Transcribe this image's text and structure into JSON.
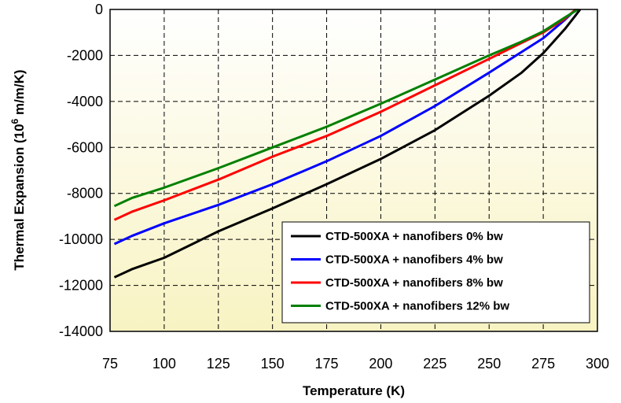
{
  "chart_data": {
    "type": "line",
    "title": "",
    "xlabel": "Temperature (K)",
    "ylabel_parts": [
      "Thermal Expansion (10",
      "6",
      " m/m/K)"
    ],
    "xlim": [
      75,
      300
    ],
    "ylim": [
      -14000,
      0
    ],
    "x_ticks": [
      "75",
      "100",
      "125",
      "150",
      "175",
      "200",
      "225",
      "250",
      "275",
      "300"
    ],
    "y_ticks": [
      "0",
      "-2000",
      "-4000",
      "-6000",
      "-8000",
      "-10000",
      "-12000",
      "-14000"
    ],
    "grid": true,
    "legend_position": "bottom-right",
    "series": [
      {
        "name": "CTD-500XA + nanofibers 0% bw",
        "color": "#000000",
        "x": [
          77,
          85,
          100,
          125,
          150,
          175,
          200,
          225,
          250,
          265,
          275,
          285,
          290,
          292
        ],
        "y": [
          -11650,
          -11300,
          -10800,
          -9650,
          -8650,
          -7600,
          -6500,
          -5250,
          -3750,
          -2750,
          -1900,
          -850,
          -250,
          0
        ]
      },
      {
        "name": "CTD-500XA + nanofibers 4% bw",
        "color": "#0000ff",
        "x": [
          77,
          85,
          100,
          125,
          150,
          175,
          200,
          225,
          250,
          265,
          275,
          285,
          290
        ],
        "y": [
          -10200,
          -9850,
          -9300,
          -8500,
          -7600,
          -6600,
          -5500,
          -4200,
          -2750,
          -1850,
          -1250,
          -450,
          0
        ]
      },
      {
        "name": "CTD-500XA + nanofibers 8% bw",
        "color": "#ff0000",
        "x": [
          77,
          85,
          100,
          125,
          150,
          175,
          200,
          225,
          250,
          265,
          275,
          285,
          290
        ],
        "y": [
          -9150,
          -8800,
          -8300,
          -7400,
          -6400,
          -5500,
          -4450,
          -3300,
          -2150,
          -1450,
          -1000,
          -400,
          0
        ]
      },
      {
        "name": "CTD-500XA + nanofibers 12% bw",
        "color": "#008000",
        "x": [
          77,
          85,
          100,
          125,
          150,
          175,
          200,
          225,
          250,
          265,
          275,
          285,
          291
        ],
        "y": [
          -8550,
          -8200,
          -7750,
          -6900,
          -6000,
          -5100,
          -4100,
          -3050,
          -2000,
          -1400,
          -950,
          -350,
          0
        ]
      }
    ]
  }
}
